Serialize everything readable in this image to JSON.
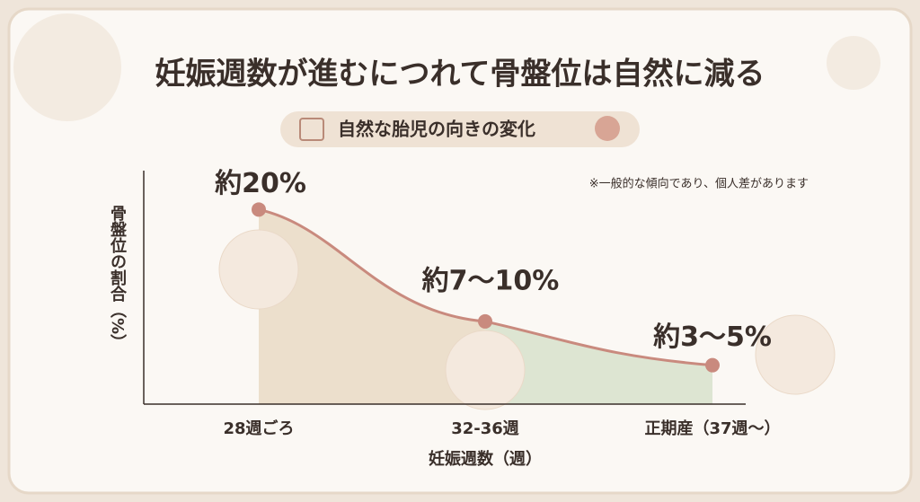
{
  "chart_data": {
    "type": "line",
    "title": "妊娠週数が進むにつれて骨盤位は自然に減る",
    "subtitle": "自然な胎児の向きの変化",
    "note": "※一般的な傾向であり、個人差があります",
    "y_label": "骨盤位の割合（%）",
    "x_label": "妊娠週数（週）",
    "categories": [
      "28週ごろ",
      "32-36週",
      "正期産（37週〜）"
    ],
    "values": [
      20,
      8.5,
      4
    ],
    "value_labels": [
      "約20%",
      "約7〜10%",
      "約3〜5%"
    ],
    "color": "#c98a7e",
    "area_colors": [
      "#ecdfcc",
      "#dde5d2"
    ],
    "ylim": [
      0,
      24
    ]
  }
}
